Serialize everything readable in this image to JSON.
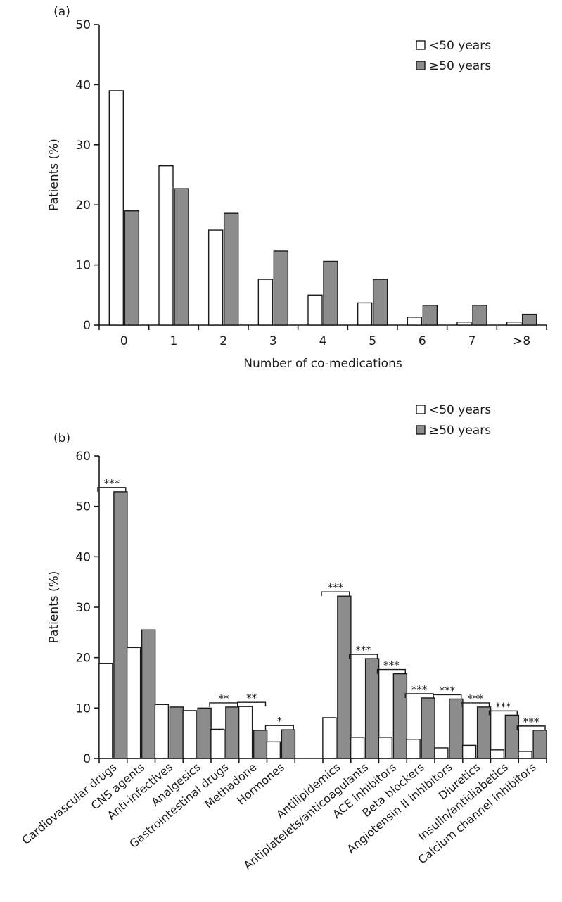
{
  "chart_data": [
    {
      "type": "bar",
      "panel_label": "(a)",
      "title": "",
      "xlabel": "Number of co-medications",
      "ylabel": "Patients (%)",
      "ylim": [
        0,
        50
      ],
      "yticks": [
        "0",
        "10",
        "20",
        "30",
        "40",
        "50"
      ],
      "legend_placement": "top-right",
      "categories": [
        "0",
        "1",
        "2",
        "3",
        "4",
        "5",
        "6",
        "7",
        ">8"
      ],
      "series": [
        {
          "name": "<50 years",
          "color": "#ffffff",
          "values": [
            39,
            26.5,
            15.8,
            7.6,
            5,
            3.7,
            1.3,
            0.5,
            0.5
          ]
        },
        {
          "name": "≥50 years",
          "color": "#8c8c8c",
          "values": [
            19,
            22.7,
            18.6,
            12.3,
            10.6,
            7.6,
            3.3,
            3.3,
            1.8
          ]
        }
      ]
    },
    {
      "type": "bar",
      "panel_label": "(b)",
      "title": "",
      "xlabel": "",
      "ylabel": "Patients (%)",
      "ylim": [
        0,
        60
      ],
      "yticks": [
        "0",
        "10",
        "20",
        "30",
        "40",
        "50",
        "60"
      ],
      "legend_placement": "top-right",
      "categories": [
        "Cardiovascular drugs",
        "CNS agents",
        "Anti-infectives",
        "Analgesics",
        "Gastrointestinal drugs",
        "Methadone",
        "Hormones",
        "",
        "Antilipidemics",
        "Antiplatelets/anticoagulants",
        "ACE inhibitors",
        "Beta blockers",
        "Angiotensin II inhibitors",
        "Diuretics",
        "Insulin/antidiabetics",
        "Calcium channel inhibitors"
      ],
      "series": [
        {
          "name": "<50 years",
          "color": "#ffffff",
          "values": [
            18.8,
            22,
            10.7,
            9.5,
            5.8,
            10.3,
            3.3,
            null,
            8.1,
            4.2,
            4.2,
            3.8,
            2.1,
            2.6,
            1.7,
            1.4
          ]
        },
        {
          "name": "≥50 years",
          "color": "#8c8c8c",
          "values": [
            52.9,
            25.5,
            10.2,
            10,
            10.2,
            5.6,
            5.7,
            null,
            32.2,
            19.8,
            16.8,
            12,
            11.8,
            10.2,
            8.6,
            5.6
          ]
        }
      ],
      "significance": [
        "***",
        "",
        "",
        "",
        "**",
        "**",
        "*",
        "",
        "***",
        "***",
        "***",
        "***",
        "***",
        "***",
        "***",
        "***"
      ]
    }
  ]
}
